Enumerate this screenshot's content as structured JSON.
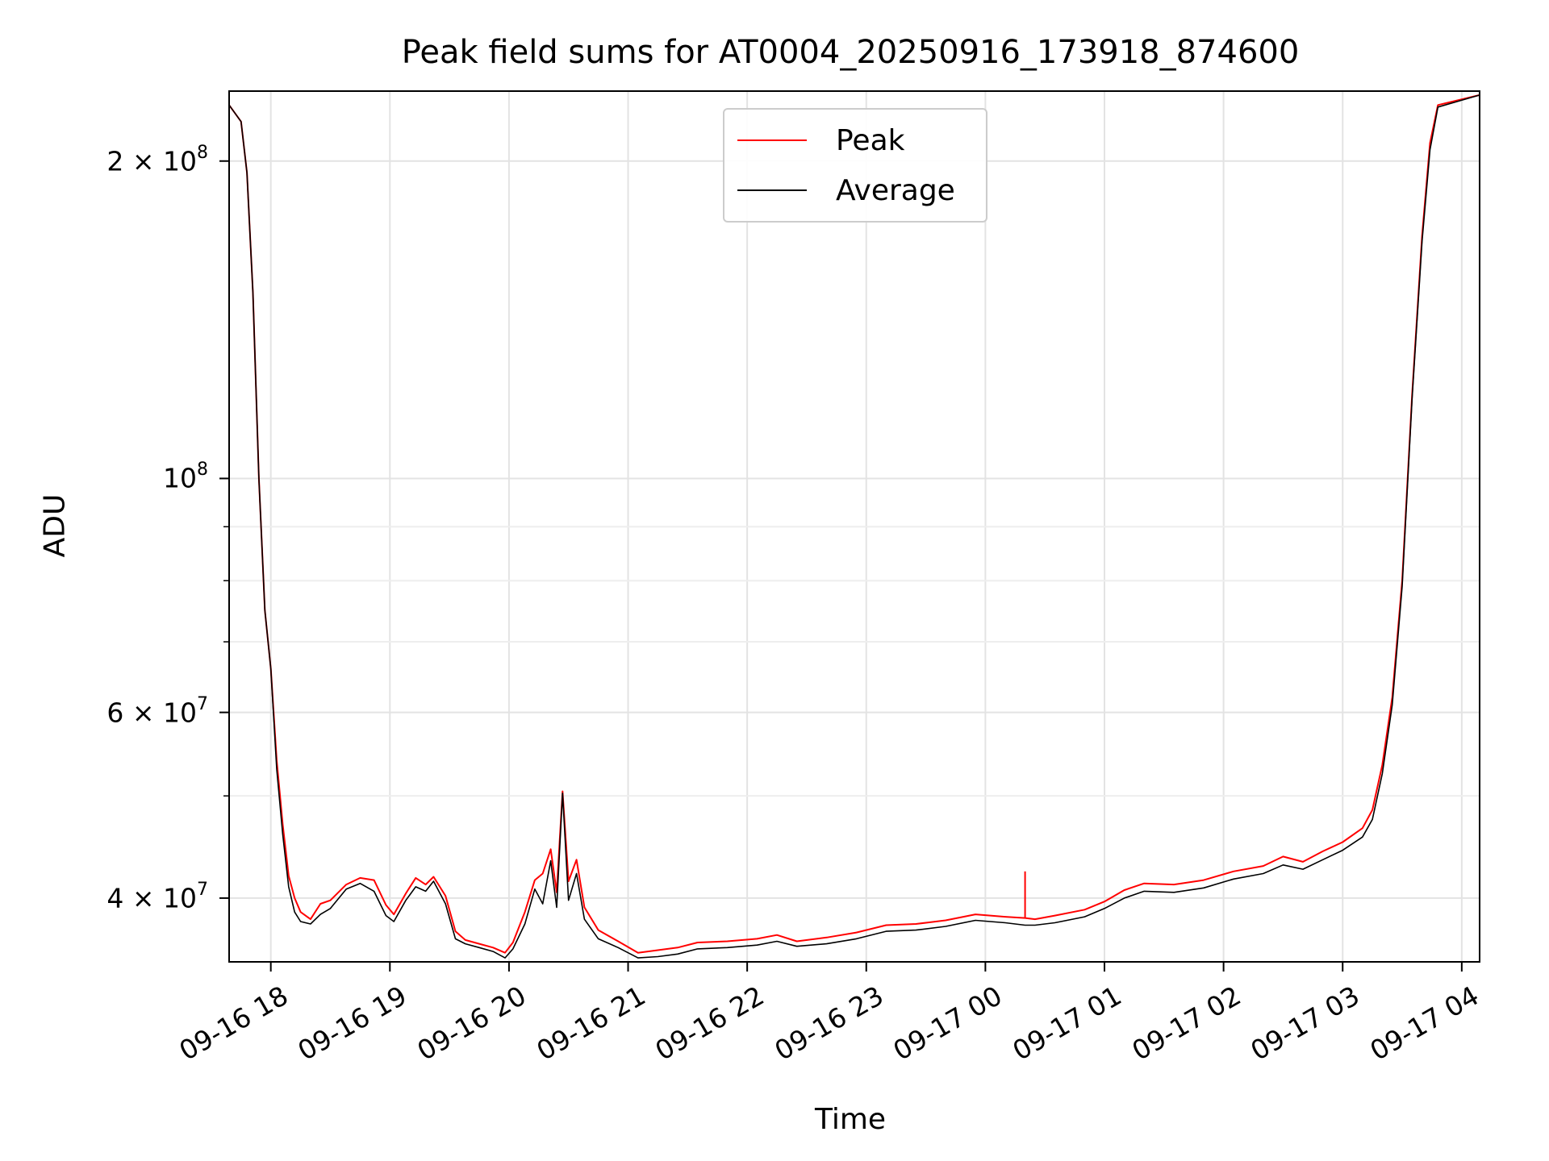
{
  "chart_data": {
    "type": "line",
    "title": "Peak field sums for AT0004_20250916_173918_874600",
    "xlabel": "Time",
    "ylabel": "ADU",
    "yscale": "log",
    "xlim": [
      "2025-09-16 17:39",
      "2025-09-17 04:09"
    ],
    "ylim": [
      34800000,
      233000000
    ],
    "grid": true,
    "legend_position": "upper center",
    "x_ticks": [
      {
        "t": "2025-09-16 18:00",
        "label": "09-16 18"
      },
      {
        "t": "2025-09-16 19:00",
        "label": "09-16 19"
      },
      {
        "t": "2025-09-16 20:00",
        "label": "09-16 20"
      },
      {
        "t": "2025-09-16 21:00",
        "label": "09-16 21"
      },
      {
        "t": "2025-09-16 22:00",
        "label": "09-16 22"
      },
      {
        "t": "2025-09-16 23:00",
        "label": "09-16 23"
      },
      {
        "t": "2025-09-17 00:00",
        "label": "09-17 00"
      },
      {
        "t": "2025-09-17 01:00",
        "label": "09-17 01"
      },
      {
        "t": "2025-09-17 02:00",
        "label": "09-17 02"
      },
      {
        "t": "2025-09-17 03:00",
        "label": "09-17 03"
      },
      {
        "t": "2025-09-17 04:00",
        "label": "09-17 04"
      }
    ],
    "y_ticks": [
      {
        "value": 40000000,
        "mantissa": "4 × 10",
        "exp": "7"
      },
      {
        "value": 60000000,
        "mantissa": "6 × 10",
        "exp": "7"
      },
      {
        "value": 100000000,
        "mantissa": "10",
        "exp": "8"
      },
      {
        "value": 200000000,
        "mantissa": "2 × 10",
        "exp": "8"
      }
    ],
    "y_minor_ticks": [
      50000000,
      70000000,
      80000000,
      90000000
    ],
    "series": [
      {
        "name": "Peak",
        "color": "#ff0000",
        "points": [
          [
            "2025-09-16 17:39",
            226000000
          ],
          [
            "2025-09-16 17:45",
            218000000
          ],
          [
            "2025-09-16 17:48",
            195000000
          ],
          [
            "2025-09-16 17:51",
            150000000
          ],
          [
            "2025-09-16 17:54",
            100000000
          ],
          [
            "2025-09-16 17:57",
            75000000
          ],
          [
            "2025-09-16 18:00",
            66000000
          ],
          [
            "2025-09-16 18:03",
            54000000
          ],
          [
            "2025-09-16 18:06",
            47000000
          ],
          [
            "2025-09-16 18:09",
            42000000
          ],
          [
            "2025-09-16 18:12",
            40000000
          ],
          [
            "2025-09-16 18:15",
            38800000
          ],
          [
            "2025-09-16 18:20",
            38200000
          ],
          [
            "2025-09-16 18:25",
            39500000
          ],
          [
            "2025-09-16 18:30",
            39800000
          ],
          [
            "2025-09-16 18:38",
            41200000
          ],
          [
            "2025-09-16 18:45",
            41800000
          ],
          [
            "2025-09-16 18:52",
            41600000
          ],
          [
            "2025-09-16 18:58",
            39400000
          ],
          [
            "2025-09-16 19:02",
            38600000
          ],
          [
            "2025-09-16 19:08",
            40400000
          ],
          [
            "2025-09-16 19:13",
            41800000
          ],
          [
            "2025-09-16 19:18",
            41200000
          ],
          [
            "2025-09-16 19:22",
            41900000
          ],
          [
            "2025-09-16 19:28",
            40200000
          ],
          [
            "2025-09-16 19:33",
            37200000
          ],
          [
            "2025-09-16 19:38",
            36500000
          ],
          [
            "2025-09-16 19:45",
            36200000
          ],
          [
            "2025-09-16 19:52",
            35900000
          ],
          [
            "2025-09-16 19:58",
            35500000
          ],
          [
            "2025-09-16 20:02",
            36300000
          ],
          [
            "2025-09-16 20:08",
            38800000
          ],
          [
            "2025-09-16 20:13",
            41600000
          ],
          [
            "2025-09-16 20:17",
            42200000
          ],
          [
            "2025-09-16 20:21",
            44500000
          ],
          [
            "2025-09-16 20:24",
            40500000
          ],
          [
            "2025-09-16 20:27",
            50500000
          ],
          [
            "2025-09-16 20:30",
            41500000
          ],
          [
            "2025-09-16 20:34",
            43500000
          ],
          [
            "2025-09-16 20:38",
            39200000
          ],
          [
            "2025-09-16 20:45",
            37300000
          ],
          [
            "2025-09-16 20:55",
            36400000
          ],
          [
            "2025-09-16 21:05",
            35500000
          ],
          [
            "2025-09-16 21:15",
            35700000
          ],
          [
            "2025-09-16 21:25",
            35900000
          ],
          [
            "2025-09-16 21:35",
            36300000
          ],
          [
            "2025-09-16 21:50",
            36400000
          ],
          [
            "2025-09-16 22:05",
            36600000
          ],
          [
            "2025-09-16 22:15",
            36900000
          ],
          [
            "2025-09-16 22:25",
            36400000
          ],
          [
            "2025-09-16 22:40",
            36700000
          ],
          [
            "2025-09-16 22:55",
            37100000
          ],
          [
            "2025-09-16 23:10",
            37700000
          ],
          [
            "2025-09-16 23:25",
            37800000
          ],
          [
            "2025-09-16 23:40",
            38100000
          ],
          [
            "2025-09-16 23:55",
            38600000
          ],
          [
            "2025-09-17 00:10",
            38400000
          ],
          [
            "2025-09-17 00:20",
            38300000
          ],
          [
            "2025-09-17 00:25",
            38200000
          ],
          [
            "2025-09-17 00:35",
            38500000
          ],
          [
            "2025-09-17 00:50",
            39000000
          ],
          [
            "2025-09-17 01:00",
            39700000
          ],
          [
            "2025-09-17 01:10",
            40700000
          ],
          [
            "2025-09-17 01:20",
            41300000
          ],
          [
            "2025-09-17 01:35",
            41200000
          ],
          [
            "2025-09-17 01:50",
            41600000
          ],
          [
            "2025-09-17 02:05",
            42400000
          ],
          [
            "2025-09-17 02:20",
            42900000
          ],
          [
            "2025-09-17 02:30",
            43800000
          ],
          [
            "2025-09-17 02:40",
            43300000
          ],
          [
            "2025-09-17 02:50",
            44300000
          ],
          [
            "2025-09-17 03:00",
            45200000
          ],
          [
            "2025-09-17 03:10",
            46600000
          ],
          [
            "2025-09-17 03:15",
            48500000
          ],
          [
            "2025-09-17 03:20",
            53500000
          ],
          [
            "2025-09-17 03:25",
            62000000
          ],
          [
            "2025-09-17 03:30",
            80000000
          ],
          [
            "2025-09-17 03:35",
            120000000
          ],
          [
            "2025-09-17 03:40",
            170000000
          ],
          [
            "2025-09-17 03:44",
            208000000
          ],
          [
            "2025-09-17 03:48",
            226000000
          ],
          [
            "2025-09-17 04:09",
            231000000
          ]
        ]
      },
      {
        "name": "Average",
        "color": "#000000",
        "points": [
          [
            "2025-09-16 17:39",
            226000000
          ],
          [
            "2025-09-16 17:45",
            218000000
          ],
          [
            "2025-09-16 17:48",
            195000000
          ],
          [
            "2025-09-16 17:51",
            150000000
          ],
          [
            "2025-09-16 17:54",
            100000000
          ],
          [
            "2025-09-16 17:57",
            75000000
          ],
          [
            "2025-09-16 18:00",
            66000000
          ],
          [
            "2025-09-16 18:03",
            53000000
          ],
          [
            "2025-09-16 18:06",
            46000000
          ],
          [
            "2025-09-16 18:09",
            41000000
          ],
          [
            "2025-09-16 18:12",
            38800000
          ],
          [
            "2025-09-16 18:15",
            38000000
          ],
          [
            "2025-09-16 18:20",
            37800000
          ],
          [
            "2025-09-16 18:25",
            38600000
          ],
          [
            "2025-09-16 18:30",
            39100000
          ],
          [
            "2025-09-16 18:38",
            40800000
          ],
          [
            "2025-09-16 18:45",
            41300000
          ],
          [
            "2025-09-16 18:52",
            40600000
          ],
          [
            "2025-09-16 18:58",
            38500000
          ],
          [
            "2025-09-16 19:02",
            38000000
          ],
          [
            "2025-09-16 19:08",
            39800000
          ],
          [
            "2025-09-16 19:13",
            41000000
          ],
          [
            "2025-09-16 19:18",
            40600000
          ],
          [
            "2025-09-16 19:22",
            41500000
          ],
          [
            "2025-09-16 19:28",
            39500000
          ],
          [
            "2025-09-16 19:33",
            36600000
          ],
          [
            "2025-09-16 19:38",
            36200000
          ],
          [
            "2025-09-16 19:45",
            35900000
          ],
          [
            "2025-09-16 19:52",
            35600000
          ],
          [
            "2025-09-16 19:58",
            35100000
          ],
          [
            "2025-09-16 20:02",
            35800000
          ],
          [
            "2025-09-16 20:08",
            37800000
          ],
          [
            "2025-09-16 20:13",
            40800000
          ],
          [
            "2025-09-16 20:17",
            39500000
          ],
          [
            "2025-09-16 20:21",
            43400000
          ],
          [
            "2025-09-16 20:24",
            39200000
          ],
          [
            "2025-09-16 20:27",
            50300000
          ],
          [
            "2025-09-16 20:30",
            39800000
          ],
          [
            "2025-09-16 20:34",
            42200000
          ],
          [
            "2025-09-16 20:38",
            38200000
          ],
          [
            "2025-09-16 20:45",
            36600000
          ],
          [
            "2025-09-16 20:55",
            35900000
          ],
          [
            "2025-09-16 21:05",
            35100000
          ],
          [
            "2025-09-16 21:15",
            35200000
          ],
          [
            "2025-09-16 21:25",
            35400000
          ],
          [
            "2025-09-16 21:35",
            35800000
          ],
          [
            "2025-09-16 21:50",
            35900000
          ],
          [
            "2025-09-16 22:05",
            36100000
          ],
          [
            "2025-09-16 22:15",
            36400000
          ],
          [
            "2025-09-16 22:25",
            36000000
          ],
          [
            "2025-09-16 22:40",
            36200000
          ],
          [
            "2025-09-16 22:55",
            36600000
          ],
          [
            "2025-09-16 23:10",
            37200000
          ],
          [
            "2025-09-16 23:25",
            37300000
          ],
          [
            "2025-09-16 23:40",
            37600000
          ],
          [
            "2025-09-16 23:55",
            38100000
          ],
          [
            "2025-09-17 00:10",
            37900000
          ],
          [
            "2025-09-17 00:20",
            37700000
          ],
          [
            "2025-09-17 00:25",
            37700000
          ],
          [
            "2025-09-17 00:35",
            37900000
          ],
          [
            "2025-09-17 00:50",
            38400000
          ],
          [
            "2025-09-17 01:00",
            39100000
          ],
          [
            "2025-09-17 01:10",
            40000000
          ],
          [
            "2025-09-17 01:20",
            40600000
          ],
          [
            "2025-09-17 01:35",
            40500000
          ],
          [
            "2025-09-17 01:50",
            40900000
          ],
          [
            "2025-09-17 02:05",
            41700000
          ],
          [
            "2025-09-17 02:20",
            42200000
          ],
          [
            "2025-09-17 02:30",
            43000000
          ],
          [
            "2025-09-17 02:40",
            42600000
          ],
          [
            "2025-09-17 02:50",
            43500000
          ],
          [
            "2025-09-17 03:00",
            44400000
          ],
          [
            "2025-09-17 03:10",
            45700000
          ],
          [
            "2025-09-17 03:15",
            47500000
          ],
          [
            "2025-09-17 03:20",
            52500000
          ],
          [
            "2025-09-17 03:25",
            61000000
          ],
          [
            "2025-09-17 03:30",
            79000000
          ],
          [
            "2025-09-17 03:35",
            119000000
          ],
          [
            "2025-09-17 03:40",
            168000000
          ],
          [
            "2025-09-17 03:44",
            205000000
          ],
          [
            "2025-09-17 03:48",
            225000000
          ],
          [
            "2025-09-17 04:09",
            231000000
          ]
        ]
      }
    ],
    "annotations": [
      {
        "series": "Peak",
        "type": "spike",
        "t": "2025-09-17 00:20",
        "value": 42400000
      }
    ]
  }
}
